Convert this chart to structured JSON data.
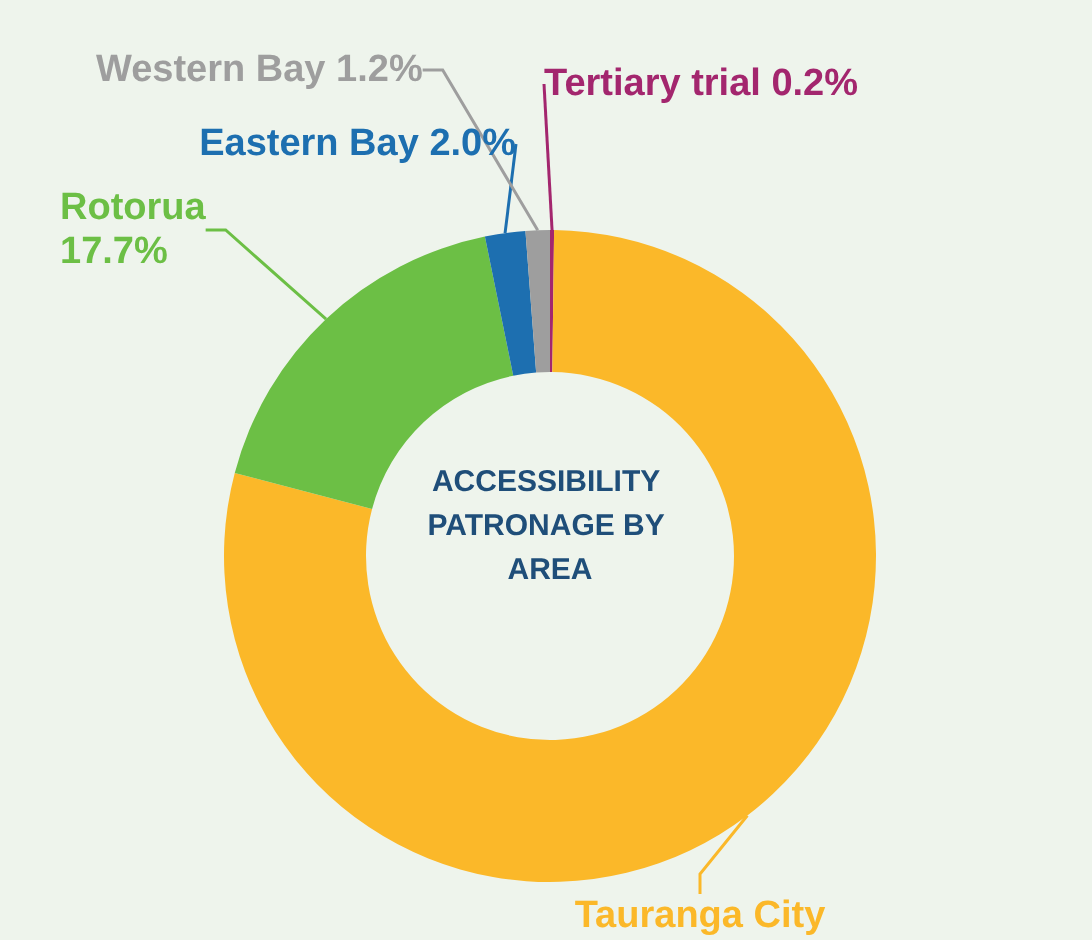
{
  "chart_data": {
    "type": "donut",
    "title": "ACCESSIBILITY PATRONAGE BY AREA",
    "categories": [
      "Tertiary trial",
      "Tauranga City",
      "Rotorua",
      "Eastern Bay",
      "Western Bay"
    ],
    "values": [
      0.2,
      78.9,
      17.7,
      2.0,
      1.2
    ],
    "value_labels": [
      "0.2%",
      null,
      "17.7%",
      "2.0%",
      "1.2%"
    ],
    "colors": [
      "#a3266e",
      "#fbb829",
      "#6cbf45",
      "#1d6fb0",
      "#9e9e9e"
    ],
    "legend": false
  }
}
